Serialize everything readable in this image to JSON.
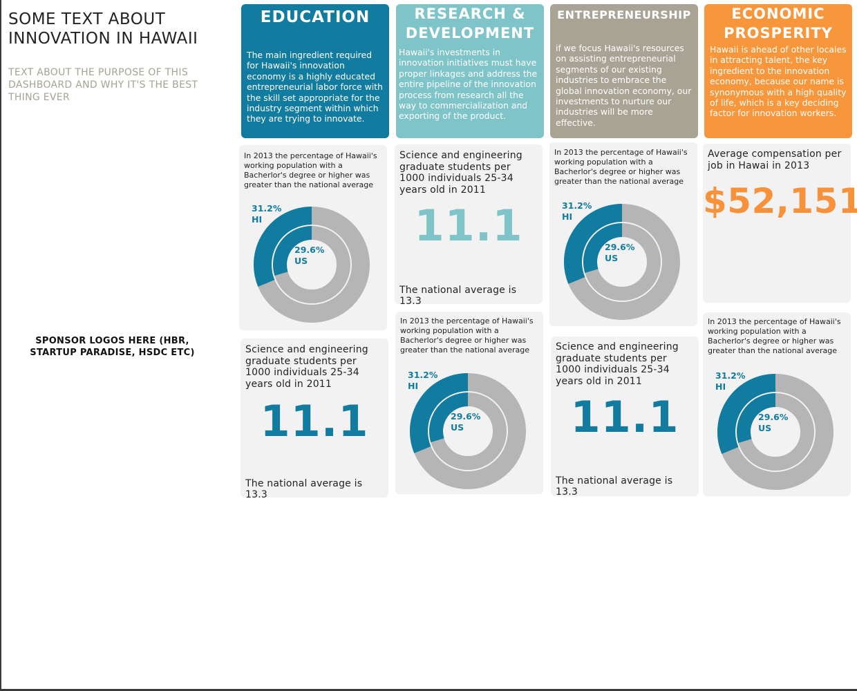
{
  "page": {
    "title": "SOME TEXT ABOUT INNOVATION IN HAWAII",
    "purpose": "TEXT ABOUT THE PURPOSE OF THIS DASHBOARD AND WHY IT'S THE BEST THING EVER",
    "sponsor": "SPONSOR LOGOS HERE (HBR, STARTUP PARADISE, HSDC ETC)"
  },
  "colors": {
    "education": "#117ca0",
    "research": "#7fc4c8",
    "entrepreneurship": "#a8a394",
    "prosperity": "#f7963a",
    "donut_hi": "#117ca0",
    "donut_bg": "#b5b5b5",
    "card_bg": "#f2f2f2"
  },
  "columns": [
    {
      "title": "EDUCATION",
      "description": "The main ingredient required for Hawaii's innovation economy is a highly educated entrepreneurial labor force with the skill set appropriate for the industry segment within which they are trying to innovate."
    },
    {
      "title": "RESEARCH & DEVELOPMENT",
      "description": "Hawaii's investments in innovation initiatives must have proper linkages and address the entire pipeline of the innovation process from research all the way to commercialization and exporting of the product."
    },
    {
      "title": "ENTREPRENEURSHIP",
      "description": "if we focus Hawaii's resources on assisting entrepreneurial segments of our existing industries to embrace the global innovation economy, our investments to nurture our industries will be more effective."
    },
    {
      "title": "ECONOMIC PROSPERITY",
      "description": "Hawaii is ahead of other locales in attracting talent, the key ingredient to the innovation economy, because our name is synonymous with a high quality of life, which is a key deciding factor for innovation workers."
    }
  ],
  "degree_stat": {
    "text": "In 2013 the percentage of Hawaii's working population with a Bacherlor's degree or higher was greater than the national average",
    "hi_label": "31.2%",
    "hi_tag": "HI",
    "us_label": "29.6%",
    "us_tag": "US",
    "hi_value": 31.2,
    "us_value": 29.6
  },
  "grad_stat": {
    "label": "Science and engineering graduate students per 1000 individuals 25-34 years old in 2011",
    "value": "11.1",
    "note": "The national average is 13.3"
  },
  "comp_stat": {
    "label": "Average compensation per job in Hawai in 2013",
    "value": "$52,151"
  }
}
